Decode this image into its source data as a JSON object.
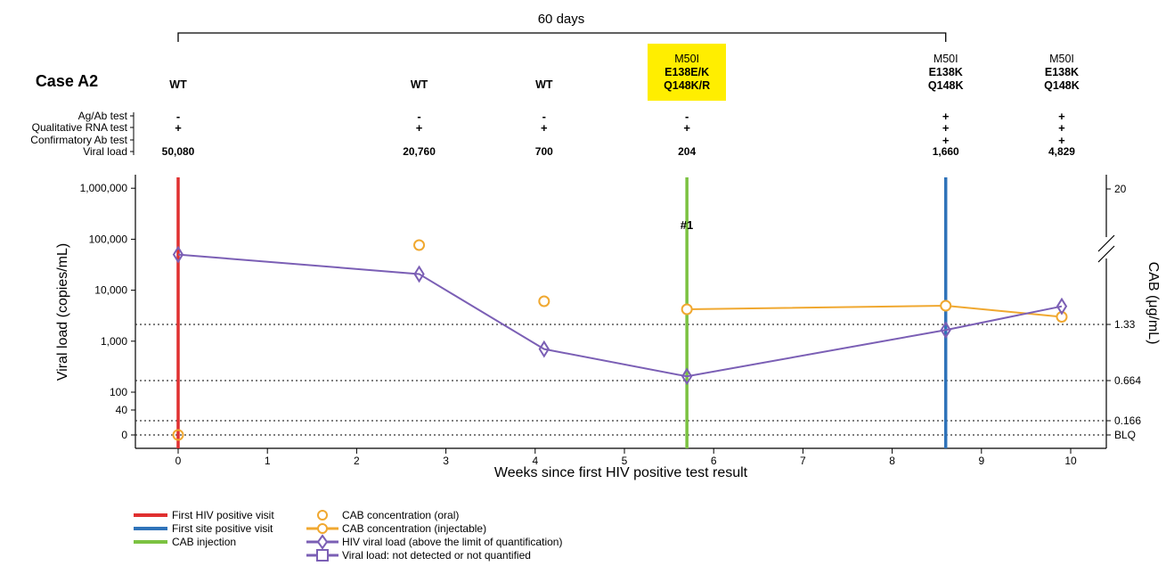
{
  "chart_data": {
    "type": "line",
    "case_label": "Case A2",
    "bracket_label": "60 days",
    "xlabel": "Weeks since first HIV positive test result",
    "ylabel": "Viral load (copies/mL)",
    "y2label": "CAB (μg/mL)",
    "xlim": [
      -0.45,
      10.4
    ],
    "x_ticks": [
      "0",
      "1",
      "2",
      "3",
      "4",
      "5",
      "6",
      "7",
      "8",
      "9",
      "10"
    ],
    "y_ticks": [
      "1,000,000",
      "100,000",
      "10,000",
      "1,000",
      "100",
      "40",
      "0"
    ],
    "y2_ticks": [
      "20",
      "1.33",
      "0.664",
      "0.166",
      "BLQ"
    ],
    "row_labels": [
      "Ag/Ab test",
      "Qualitative RNA test",
      "Confirmatory Ab test",
      "Viral load"
    ],
    "visits": [
      {
        "x": 0,
        "genotype": [
          {
            "text": "WT",
            "bold": true
          }
        ],
        "ag_ab": "-",
        "rna": "+",
        "confirm": "",
        "viral_load": "50,080",
        "highlight": false
      },
      {
        "x": 2.7,
        "genotype": [
          {
            "text": "WT",
            "bold": true
          }
        ],
        "ag_ab": "-",
        "rna": "+",
        "confirm": "",
        "viral_load": "20,760",
        "highlight": false
      },
      {
        "x": 4.1,
        "genotype": [
          {
            "text": "WT",
            "bold": true
          }
        ],
        "ag_ab": "-",
        "rna": "+",
        "confirm": "",
        "viral_load": "700",
        "highlight": false
      },
      {
        "x": 5.7,
        "genotype": [
          {
            "text": "M50I",
            "bold": false
          },
          {
            "text": "E138E/K",
            "bold": true
          },
          {
            "text": "Q148K/R",
            "bold": true
          }
        ],
        "ag_ab": "-",
        "rna": "+",
        "confirm": "",
        "viral_load": "204",
        "highlight": true
      },
      {
        "x": 8.6,
        "genotype": [
          {
            "text": "M50I",
            "bold": false
          },
          {
            "text": "E138K",
            "bold": true
          },
          {
            "text": "Q148K",
            "bold": true
          }
        ],
        "ag_ab": "+",
        "rna": "+",
        "confirm": "+",
        "viral_load": "1,660",
        "highlight": false
      },
      {
        "x": 9.9,
        "genotype": [
          {
            "text": "M50I",
            "bold": false
          },
          {
            "text": "E138K",
            "bold": true
          },
          {
            "text": "Q148K",
            "bold": true
          }
        ],
        "ag_ab": "+",
        "rna": "+",
        "confirm": "+",
        "viral_load": "4,829",
        "highlight": false
      }
    ],
    "series": [
      {
        "name": "HIV viral load (above the limit of quantification)",
        "color": "#7b5fb5",
        "points": [
          [
            0,
            50080
          ],
          [
            2.7,
            20760
          ],
          [
            4.1,
            700
          ],
          [
            5.7,
            204
          ],
          [
            8.6,
            1660
          ],
          [
            9.9,
            4829
          ]
        ]
      },
      {
        "name": "CAB concentration (oral)",
        "color": "#f0a830",
        "points": [
          [
            0,
            "BLQ"
          ],
          [
            2.7,
            4.2
          ],
          [
            4.1,
            1.5
          ]
        ]
      },
      {
        "name": "CAB concentration (injectable)",
        "color": "#f0a830",
        "points": [
          [
            5.7,
            1.39
          ],
          [
            8.6,
            1.42
          ],
          [
            9.9,
            1.36
          ]
        ]
      }
    ],
    "vertical_markers": [
      {
        "x": 0,
        "name": "First HIV positive visit",
        "color": "#e03030"
      },
      {
        "x": 5.7,
        "name": "CAB injection",
        "color": "#7cc242"
      },
      {
        "x": 8.6,
        "name": "First site positive visit",
        "color": "#2f73b9"
      }
    ],
    "annotation": "#1",
    "legend": [
      {
        "label": "First HIV positive visit",
        "kind": "line",
        "color": "#e03030"
      },
      {
        "label": "First site positive visit",
        "kind": "line",
        "color": "#2f73b9"
      },
      {
        "label": "CAB injection",
        "kind": "line",
        "color": "#7cc242"
      },
      {
        "label": "CAB concentration (oral)",
        "kind": "circle",
        "color": "#f0a830"
      },
      {
        "label": "CAB concentration (injectable)",
        "kind": "circle-line",
        "color": "#f0a830"
      },
      {
        "label": "HIV viral load (above the limit of quantification)",
        "kind": "diamond-line",
        "color": "#7b5fb5"
      },
      {
        "label": "Viral load: not detected or not quantified",
        "kind": "square-line",
        "color": "#7b5fb5"
      }
    ],
    "legend_position": "bottom-left"
  }
}
